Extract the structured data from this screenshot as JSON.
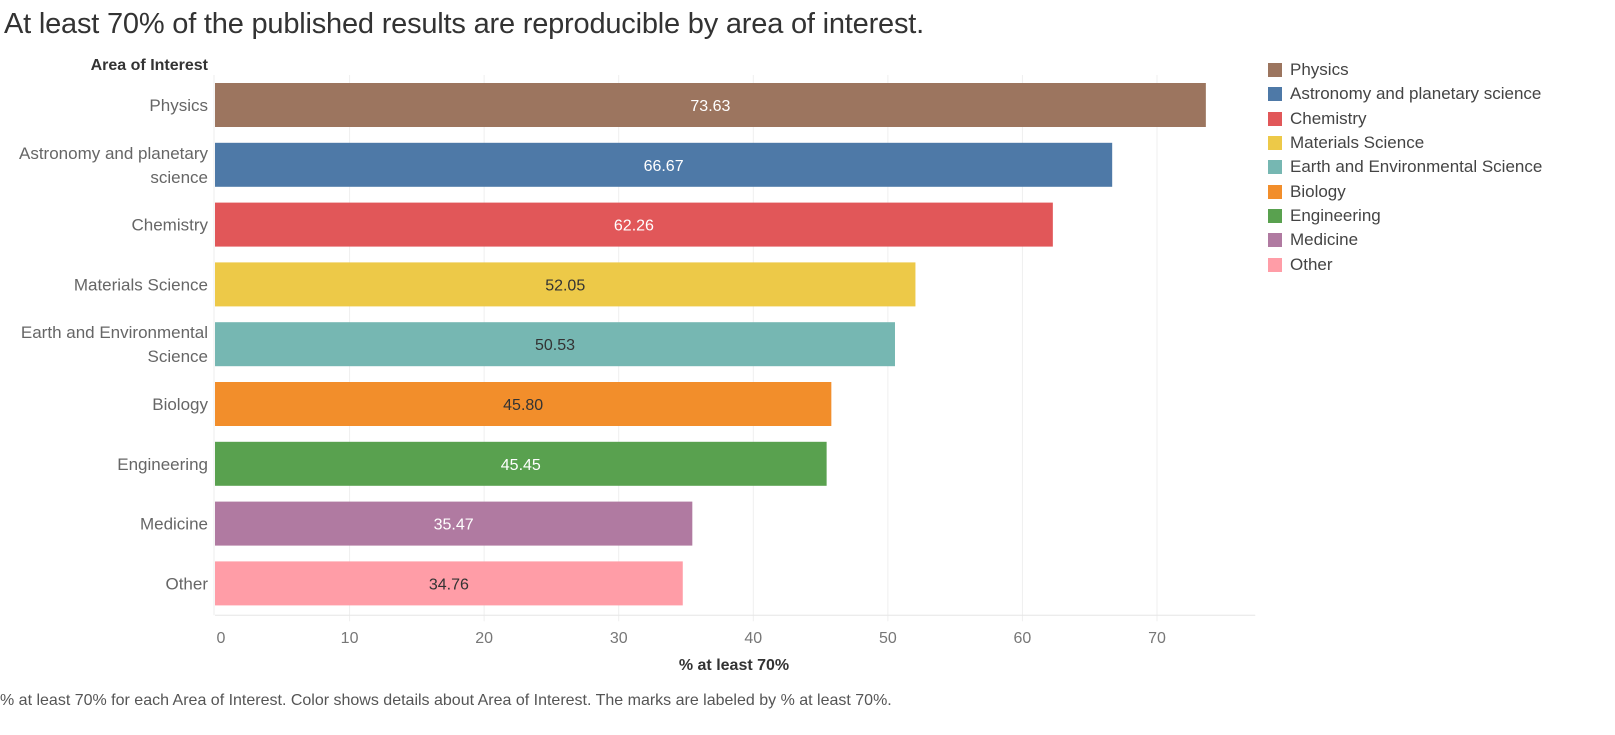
{
  "chart_data": {
    "type": "bar",
    "orientation": "horizontal",
    "title": "At least 70% of the published results are reproducible by area of interest.",
    "row_header": "Area of Interest",
    "xlabel": "% at least 70%",
    "ylabel": "Area of Interest",
    "xlim": [
      0,
      77.3
    ],
    "xticks": [
      0,
      10,
      20,
      30,
      40,
      50,
      60,
      70
    ],
    "grid": true,
    "legend_position": "right",
    "categories": [
      "Physics",
      "Astronomy and planetary science",
      "Chemistry",
      "Materials Science",
      "Earth and Environmental Science",
      "Biology",
      "Engineering",
      "Medicine",
      "Other"
    ],
    "category_label_lines": [
      [
        "Physics"
      ],
      [
        "Astronomy and planetary",
        "science"
      ],
      [
        "Chemistry"
      ],
      [
        "Materials Science"
      ],
      [
        "Earth and Environmental",
        "Science"
      ],
      [
        "Biology"
      ],
      [
        "Engineering"
      ],
      [
        "Medicine"
      ],
      [
        "Other"
      ]
    ],
    "values": [
      73.63,
      66.67,
      62.26,
      52.05,
      50.53,
      45.8,
      45.45,
      35.47,
      34.76
    ],
    "data_labels": [
      "73.63",
      "66.67",
      "62.26",
      "52.05",
      "50.53",
      "45.80",
      "45.45",
      "35.47",
      "34.76"
    ],
    "colors": [
      "#9c755f",
      "#4e79a7",
      "#e15759",
      "#edc948",
      "#76b7b2",
      "#f28e2b",
      "#59a14f",
      "#b07aa1",
      "#ff9da7"
    ],
    "label_colors": [
      "#ffffff",
      "#ffffff",
      "#ffffff",
      "#333333",
      "#333333",
      "#333333",
      "#ffffff",
      "#ffffff",
      "#333333"
    ],
    "legend": {
      "title": "",
      "entries": [
        "Physics",
        "Astronomy and planetary science",
        "Chemistry",
        "Materials Science",
        "Earth and Environmental Science",
        "Biology",
        "Engineering",
        "Medicine",
        "Other"
      ]
    },
    "caption": "% at least 70% for each Area of Interest.  Color shows details about Area of Interest.  The marks are labeled by % at least 70%."
  }
}
